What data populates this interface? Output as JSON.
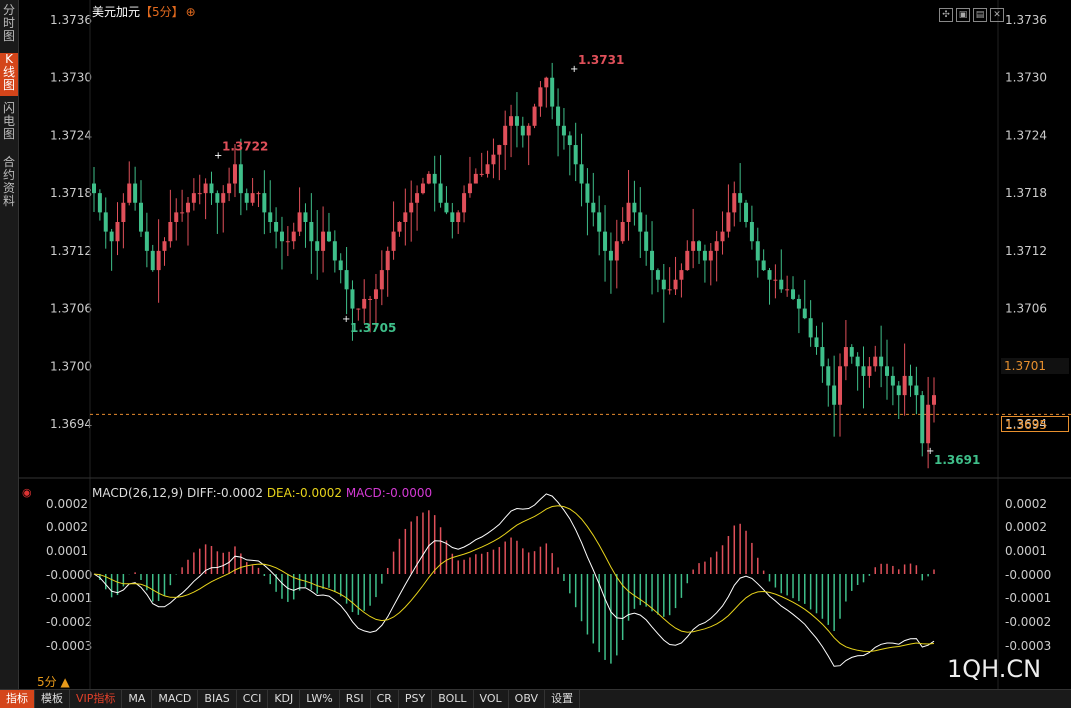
{
  "sidebar": {
    "tabs": [
      {
        "label": "分时图",
        "active": false
      },
      {
        "label": "K线图",
        "active": true
      },
      {
        "label": "闪电图",
        "active": false
      },
      {
        "label": "合约资料",
        "active": false
      }
    ]
  },
  "header": {
    "symbol": "美元加元",
    "period": "【5分】",
    "add_icon": "plus-circle-icon",
    "window_icons": [
      "fullscreen-icon",
      "expand-icon",
      "collapse-icon",
      "close-icon"
    ]
  },
  "price_axis": {
    "ticks": [
      "1.3736",
      "1.3730",
      "1.3724",
      "1.3718",
      "1.3712",
      "1.3706",
      "1.3700",
      "1.3694"
    ],
    "last_close_label": "1.3701",
    "current_price_label": "1.3695"
  },
  "annotations": {
    "high1": "1.3722",
    "low1": "1.3705",
    "high2": "1.3731",
    "low2": "1.3691"
  },
  "macd": {
    "legend_prefix": "MACD(26,12,9)",
    "diff": "DIFF:-0.0002",
    "dea": "DEA:-0.0002",
    "macd": "MACD:-0.0000",
    "ticks": [
      "0.0002",
      "0.0002",
      "0.0001",
      "-0.0000",
      "-0.0001",
      "-0.0002",
      "-0.0003"
    ],
    "colors": {
      "diff": "#ffffff",
      "dea": "#e7d31b",
      "up": "#e0505a",
      "down": "#3fbf8a"
    }
  },
  "footer": {
    "period_label": "5分 ▲",
    "toolbar": [
      {
        "label": "指标",
        "style": "active"
      },
      {
        "label": "模板",
        "style": ""
      },
      {
        "label": "VIP指标",
        "style": "vip"
      },
      {
        "label": "MA",
        "style": ""
      },
      {
        "label": "MACD",
        "style": ""
      },
      {
        "label": "BIAS",
        "style": ""
      },
      {
        "label": "CCI",
        "style": ""
      },
      {
        "label": "KDJ",
        "style": ""
      },
      {
        "label": "LW%",
        "style": ""
      },
      {
        "label": "RSI",
        "style": ""
      },
      {
        "label": "CR",
        "style": ""
      },
      {
        "label": "PSY",
        "style": ""
      },
      {
        "label": "BOLL",
        "style": ""
      },
      {
        "label": "VOL",
        "style": ""
      },
      {
        "label": "OBV",
        "style": ""
      },
      {
        "label": "设置",
        "style": ""
      }
    ]
  },
  "watermark": "1QH.CN",
  "colors": {
    "up": "#e0505a",
    "down": "#3fbf8a",
    "accent": "#d4451a",
    "price_line": "#e68a2e"
  },
  "chart_data": {
    "type": "candlestick",
    "ylim": [
      1.3688,
      1.3738
    ],
    "close_path": [
      1.3718,
      1.3716,
      1.3714,
      1.3713,
      1.3715,
      1.3717,
      1.3719,
      1.3717,
      1.3714,
      1.3712,
      1.371,
      1.3712,
      1.3713,
      1.3715,
      1.3716,
      1.3716,
      1.3717,
      1.3718,
      1.3718,
      1.3719,
      1.3718,
      1.3717,
      1.3718,
      1.3719,
      1.3721,
      1.3718,
      1.3717,
      1.3718,
      1.3718,
      1.3716,
      1.3715,
      1.3714,
      1.3713,
      1.3713,
      1.3714,
      1.3716,
      1.3715,
      1.3713,
      1.3712,
      1.3714,
      1.3713,
      1.3711,
      1.371,
      1.3708,
      1.3706,
      1.3706,
      1.3707,
      1.3707,
      1.3708,
      1.371,
      1.3712,
      1.3714,
      1.3715,
      1.3716,
      1.3717,
      1.3718,
      1.3719,
      1.372,
      1.3719,
      1.3717,
      1.3716,
      1.3715,
      1.3716,
      1.3718,
      1.3719,
      1.372,
      1.372,
      1.3721,
      1.3722,
      1.3723,
      1.3725,
      1.3726,
      1.3725,
      1.3724,
      1.3725,
      1.3727,
      1.3729,
      1.373,
      1.3727,
      1.3725,
      1.3724,
      1.3723,
      1.3721,
      1.3719,
      1.3717,
      1.3716,
      1.3714,
      1.3712,
      1.3711,
      1.3713,
      1.3715,
      1.3717,
      1.3716,
      1.3714,
      1.3712,
      1.371,
      1.3709,
      1.3708,
      1.3708,
      1.3709,
      1.371,
      1.3712,
      1.3713,
      1.3712,
      1.3711,
      1.3712,
      1.3713,
      1.3714,
      1.3716,
      1.3718,
      1.3717,
      1.3715,
      1.3713,
      1.3711,
      1.371,
      1.3709,
      1.3709,
      1.3708,
      1.3708,
      1.3707,
      1.3706,
      1.3705,
      1.3703,
      1.3702,
      1.37,
      1.3698,
      1.3696,
      1.37,
      1.3702,
      1.3701,
      1.37,
      1.3699,
      1.37,
      1.3701,
      1.37,
      1.3699,
      1.3698,
      1.3697,
      1.3699,
      1.3698,
      1.3697,
      1.3692,
      1.3696,
      1.3697
    ]
  }
}
